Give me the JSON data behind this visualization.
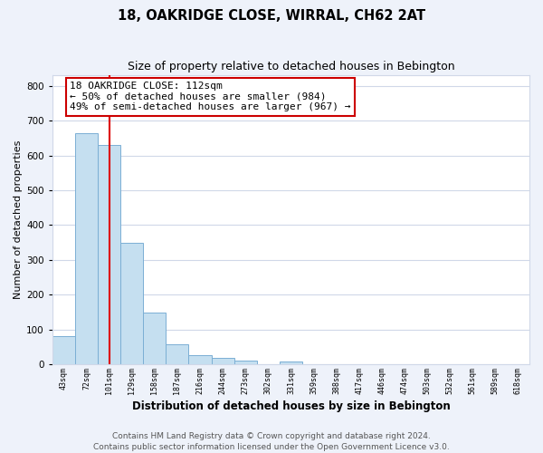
{
  "title": "18, OAKRIDGE CLOSE, WIRRAL, CH62 2AT",
  "subtitle": "Size of property relative to detached houses in Bebington",
  "xlabel": "Distribution of detached houses by size in Bebington",
  "ylabel": "Number of detached properties",
  "bar_labels": [
    "43sqm",
    "72sqm",
    "101sqm",
    "129sqm",
    "158sqm",
    "187sqm",
    "216sqm",
    "244sqm",
    "273sqm",
    "302sqm",
    "331sqm",
    "359sqm",
    "388sqm",
    "417sqm",
    "446sqm",
    "474sqm",
    "503sqm",
    "532sqm",
    "561sqm",
    "589sqm",
    "618sqm"
  ],
  "bar_heights": [
    82,
    663,
    630,
    350,
    148,
    57,
    27,
    18,
    10,
    0,
    8,
    0,
    0,
    0,
    0,
    0,
    0,
    0,
    0,
    0,
    0
  ],
  "bar_color": "#c5dff0",
  "bar_edge_color": "#7bafd4",
  "property_line_x": 2,
  "property_line_color": "#dd0000",
  "annotation_line1": "18 OAKRIDGE CLOSE: 112sqm",
  "annotation_line2": "← 50% of detached houses are smaller (984)",
  "annotation_line3": "49% of semi-detached houses are larger (967) →",
  "ylim": [
    0,
    830
  ],
  "yticks": [
    0,
    100,
    200,
    300,
    400,
    500,
    600,
    700,
    800
  ],
  "footer_text": "Contains HM Land Registry data © Crown copyright and database right 2024.\nContains public sector information licensed under the Open Government Licence v3.0.",
  "background_color": "#eef2fa",
  "plot_background_color": "#ffffff",
  "grid_color": "#d0d8e8",
  "title_fontsize": 10.5,
  "subtitle_fontsize": 9,
  "annotation_fontsize": 8,
  "footer_fontsize": 6.5,
  "ylabel_fontsize": 8,
  "xlabel_fontsize": 8.5
}
